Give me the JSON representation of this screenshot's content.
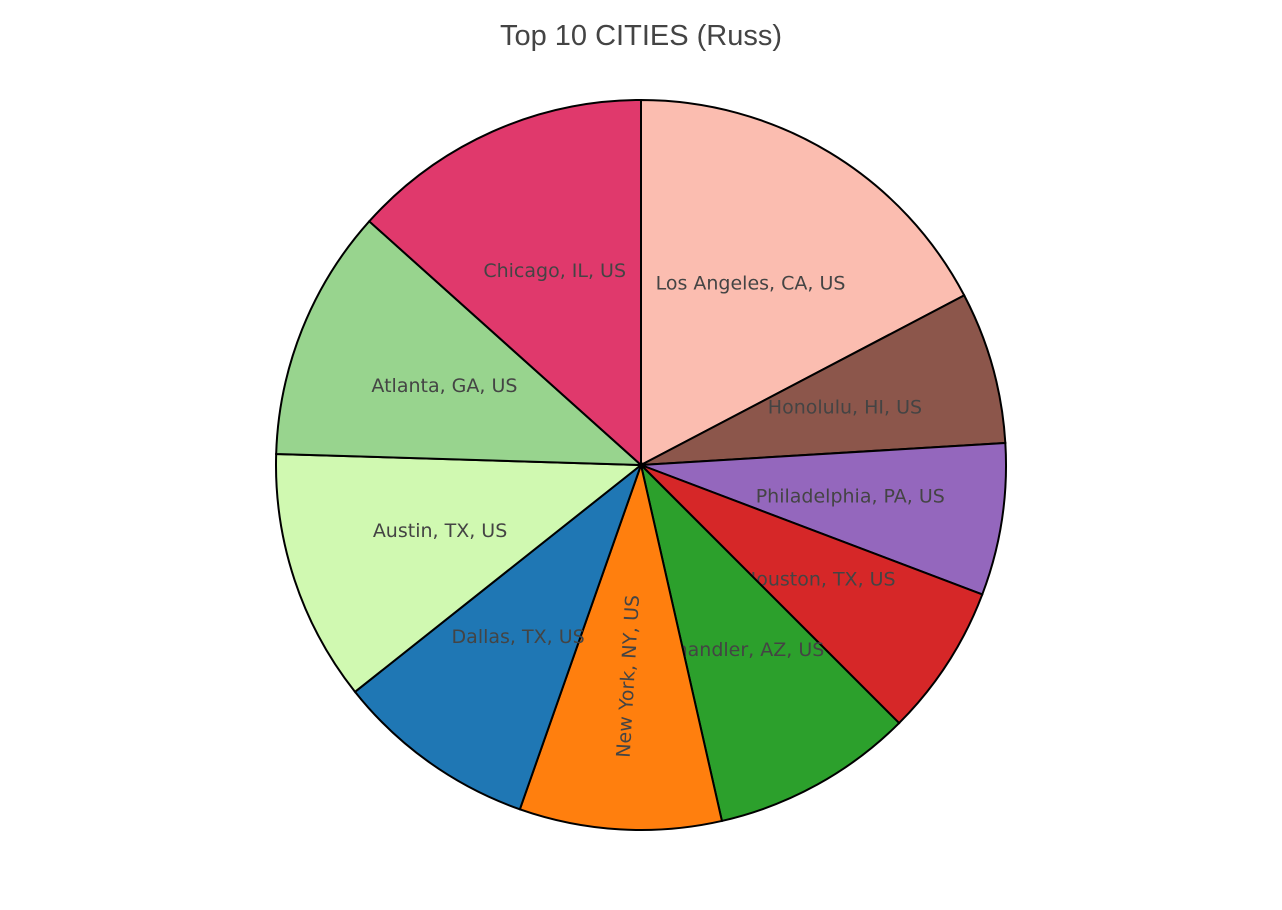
{
  "chart_data": {
    "type": "pie",
    "title": "Top 10 CITIES (Russ)",
    "start_angle_deg": 90,
    "direction": "clockwise",
    "slices": [
      {
        "label": "Los Angeles, CA, US",
        "value": 18.0,
        "color": "#FBBDB0"
      },
      {
        "label": "Honolulu, HI, US",
        "value": 7.0,
        "color": "#8C564B"
      },
      {
        "label": "Philadelphia, PA, US",
        "value": 7.0,
        "color": "#9467BD"
      },
      {
        "label": "Houston, TX, US",
        "value": 7.0,
        "color": "#D62728"
      },
      {
        "label": "Chandler, AZ, US",
        "value": 9.3,
        "color": "#2CA02C"
      },
      {
        "label": "New York, NY, US",
        "value": 9.3,
        "color": "#FF7F0E"
      },
      {
        "label": "Dallas, TX, US",
        "value": 9.3,
        "color": "#1F77B4"
      },
      {
        "label": "Austin, TX, US",
        "value": 11.6,
        "color": "#D0F9B1"
      },
      {
        "label": "Atlanta, GA, US",
        "value": 11.6,
        "color": "#98D48E"
      },
      {
        "label": "Chicago, IL, US",
        "value": 13.9,
        "color": "#E0396C"
      }
    ],
    "legend": "none"
  }
}
